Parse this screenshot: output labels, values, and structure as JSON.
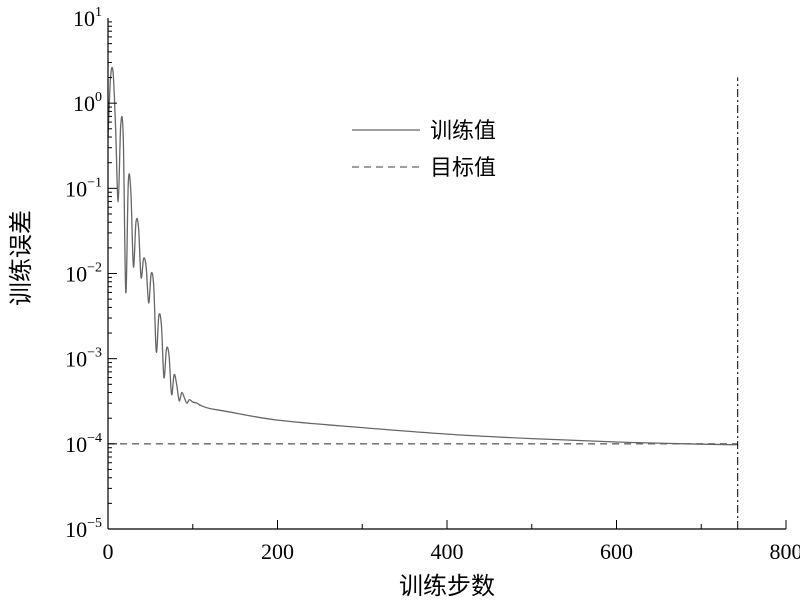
{
  "chart_data": {
    "type": "line",
    "xlabel": "训练步数",
    "ylabel": "训练误差",
    "x_scale": "linear",
    "y_scale": "log",
    "xlim": [
      0,
      800
    ],
    "ylim": [
      1e-05,
      10
    ],
    "x_ticks": [
      0,
      200,
      400,
      600,
      800
    ],
    "x_tick_labels": [
      "0",
      "200",
      "400",
      "600",
      "800"
    ],
    "y_ticks": [
      1e-05,
      0.0001,
      0.001,
      0.01,
      0.1,
      1,
      10
    ],
    "y_tick_labels": [
      {
        "base": "10",
        "exp": "−5"
      },
      {
        "base": "10",
        "exp": "−4"
      },
      {
        "base": "10",
        "exp": "−3"
      },
      {
        "base": "10",
        "exp": "−2"
      },
      {
        "base": "10",
        "exp": "−1"
      },
      {
        "base": "10",
        "exp": "0"
      },
      {
        "base": "10",
        "exp": "1"
      }
    ],
    "grid": false,
    "legend_position": "top-right",
    "series": [
      {
        "name": "训练值",
        "style": "solid",
        "color": "#666666",
        "x": [
          0,
          3,
          6,
          9,
          12,
          15,
          18,
          21,
          24,
          27,
          30,
          33,
          36,
          39,
          42,
          45,
          48,
          51,
          54,
          57,
          60,
          63,
          66,
          69,
          72,
          75,
          78,
          81,
          84,
          87,
          90,
          93,
          96,
          100,
          105,
          110,
          120,
          140,
          200,
          300,
          400,
          500,
          600,
          700,
          743
        ],
        "y": [
          0.4,
          2.0,
          2.3,
          0.5,
          0.07,
          0.55,
          0.4,
          0.006,
          0.12,
          0.09,
          0.012,
          0.04,
          0.035,
          0.009,
          0.015,
          0.012,
          0.0045,
          0.01,
          0.007,
          0.0012,
          0.0032,
          0.0025,
          0.0006,
          0.0013,
          0.0011,
          0.00038,
          0.00065,
          0.0005,
          0.00032,
          0.0004,
          0.00035,
          0.0003,
          0.00033,
          0.00031,
          0.0003,
          0.00028,
          0.00026,
          0.00024,
          0.00019,
          0.000155,
          0.00013,
          0.000115,
          0.000105,
          9.9e-05,
          9.75e-05
        ]
      },
      {
        "name": "目标值",
        "style": "dashed",
        "color": "#666666",
        "x": [
          0,
          743
        ],
        "y": [
          0.0001,
          0.0001
        ]
      }
    ],
    "annotations": [
      {
        "type": "vline",
        "x": 743,
        "style": "dash-dot",
        "color": "#000000"
      }
    ]
  }
}
